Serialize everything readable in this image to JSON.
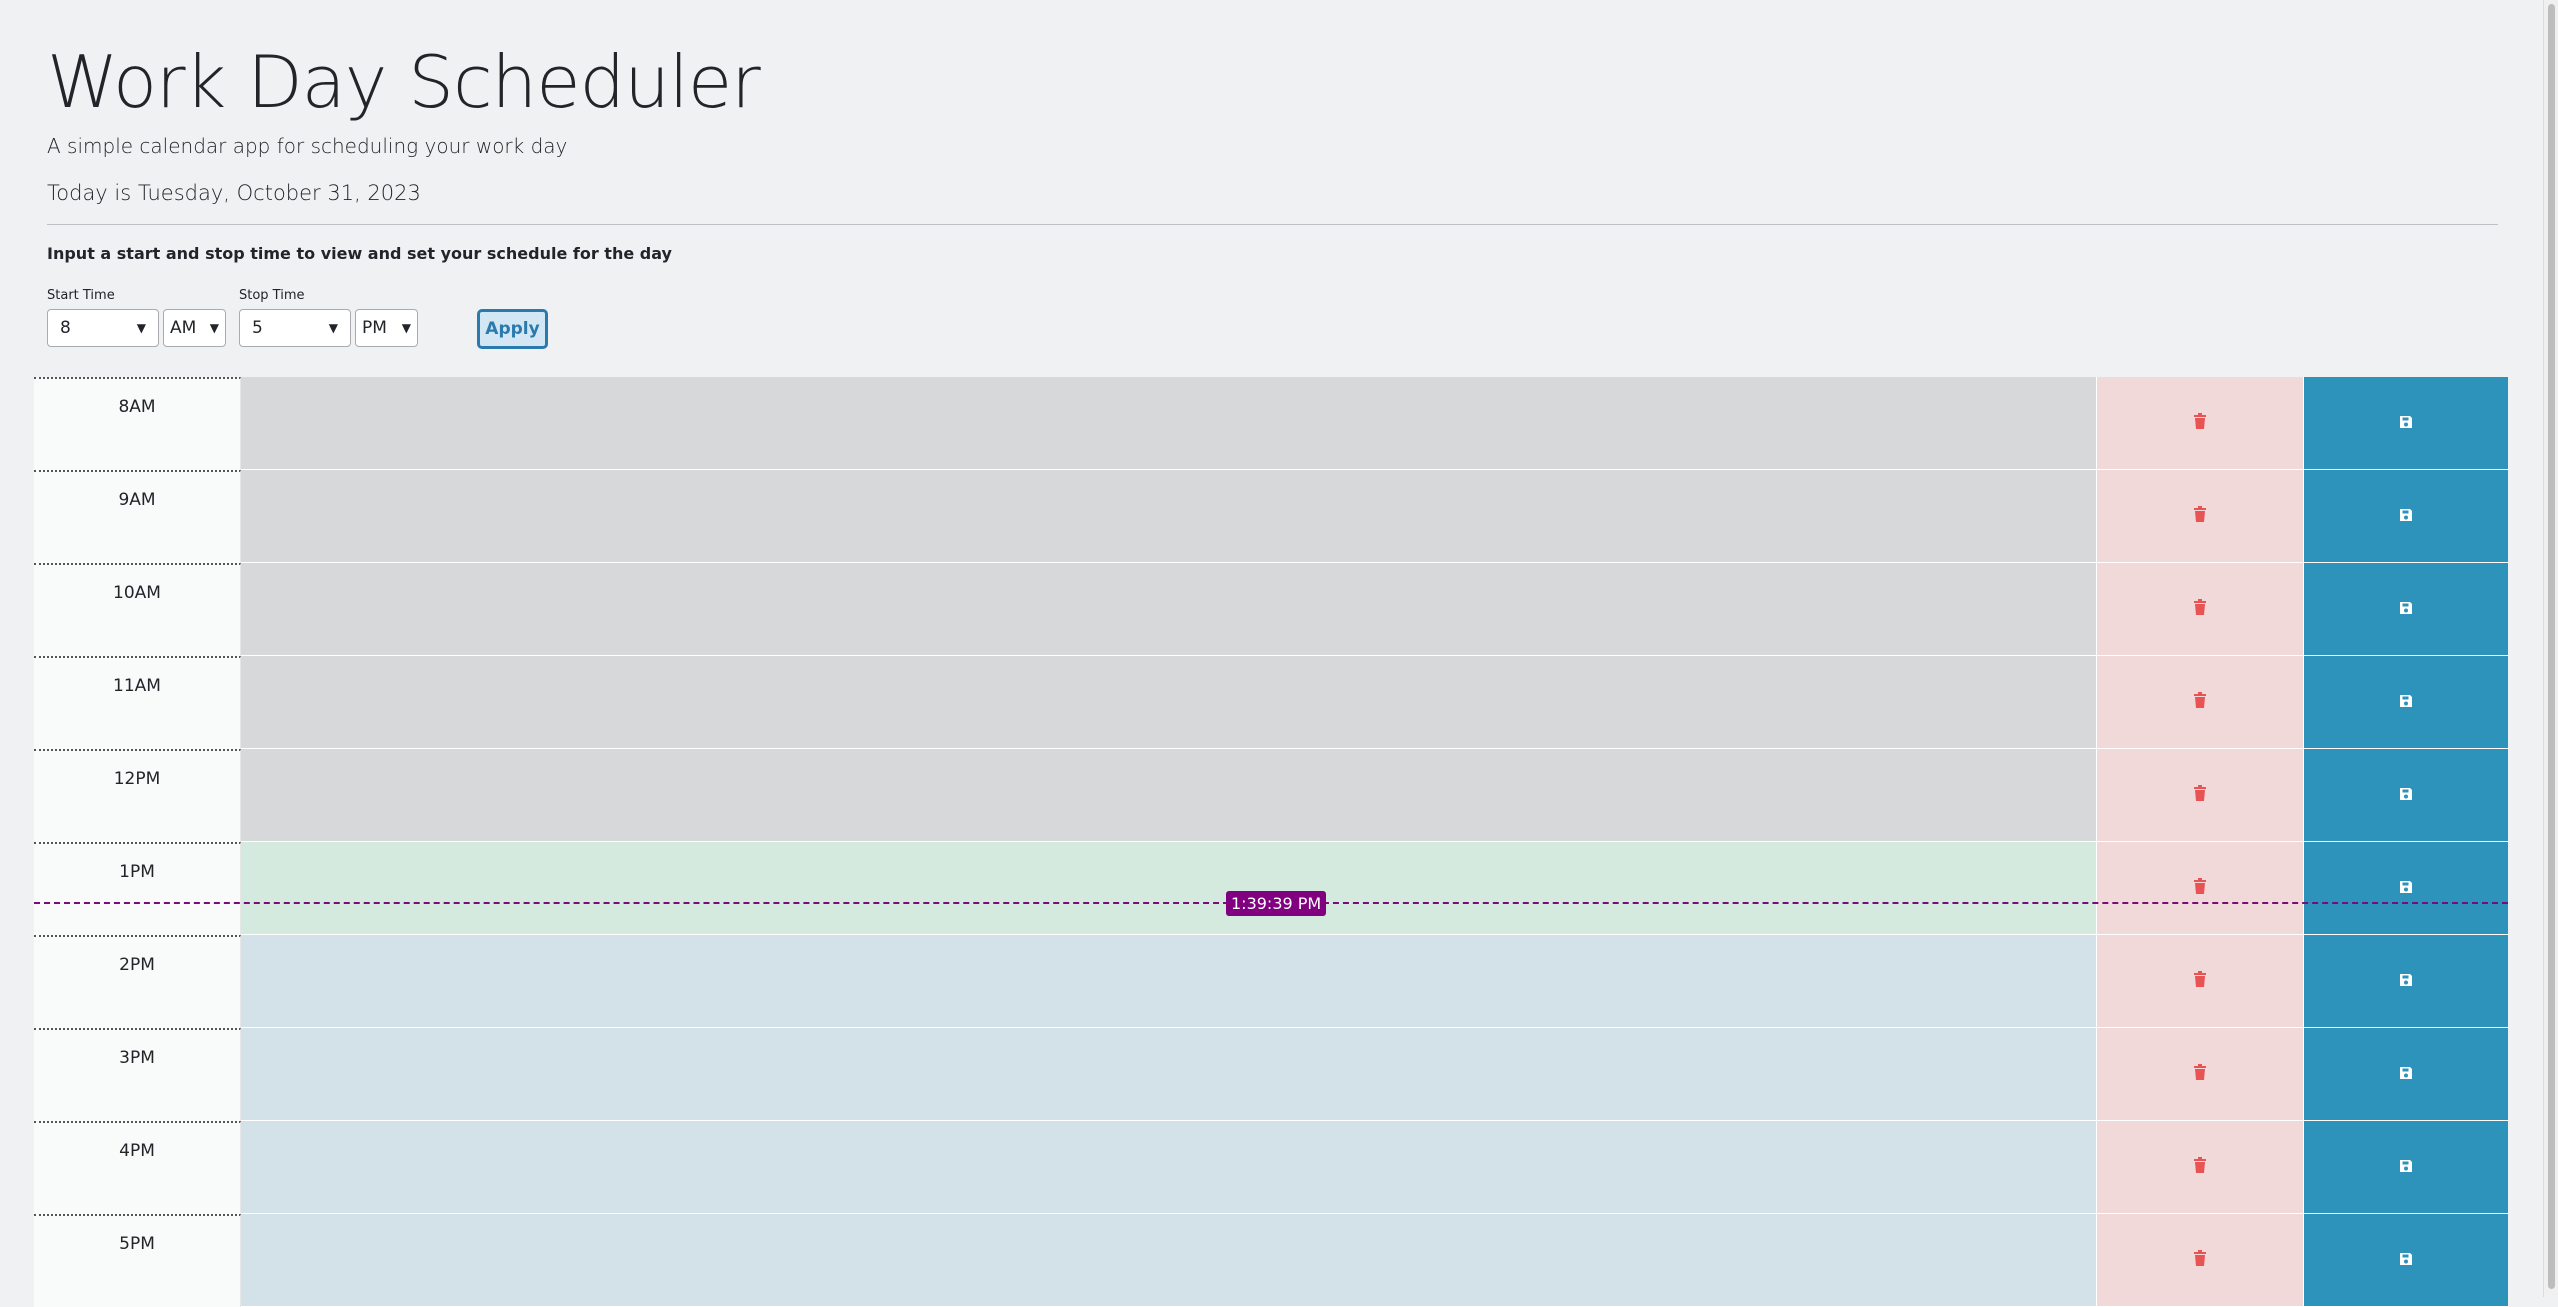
{
  "header": {
    "title": "Work Day Scheduler",
    "lead": "A simple calendar app for scheduling your work day",
    "today": "Today is Tuesday, October 31, 2023",
    "instructions": "Input a start and stop time to view and set your schedule for the day"
  },
  "controls": {
    "start_label": "Start Time",
    "start_hour": "8",
    "start_ampm": "AM",
    "stop_label": "Stop Time",
    "stop_hour": "5",
    "stop_ampm": "PM",
    "apply_label": "Apply"
  },
  "rows": [
    {
      "hour": "8AM",
      "state": "past"
    },
    {
      "hour": "9AM",
      "state": "past"
    },
    {
      "hour": "10AM",
      "state": "past"
    },
    {
      "hour": "11AM",
      "state": "past"
    },
    {
      "hour": "12PM",
      "state": "past"
    },
    {
      "hour": "1PM",
      "state": "present"
    },
    {
      "hour": "2PM",
      "state": "future"
    },
    {
      "hour": "3PM",
      "state": "future"
    },
    {
      "hour": "4PM",
      "state": "future"
    },
    {
      "hour": "5PM",
      "state": "future"
    }
  ],
  "now_indicator": "1:39:39 PM",
  "icons": {
    "delete": "trash-icon",
    "save": "floppy-disk-icon"
  },
  "colors": {
    "accent": "#2e93ba",
    "past": "#d7d8da",
    "present": "#d4eadf",
    "future": "#d3e2e9",
    "delete_bg": "#f2d9d9",
    "delete_icon": "#e85353",
    "now_line": "#800080"
  }
}
